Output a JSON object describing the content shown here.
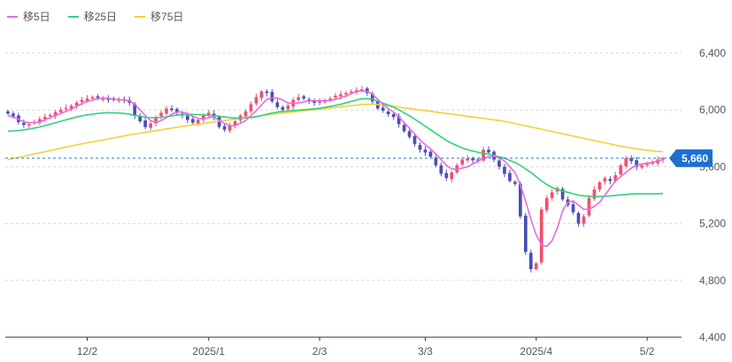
{
  "colors": {
    "ma5": "#e56be3",
    "ma25": "#2fd37a",
    "ma75": "#f2d03a",
    "up": "#f0506e",
    "down": "#4a4fb5",
    "last_line": "#2a7cc7",
    "badge": "#1e6fd0",
    "grid": "#d9d9d9",
    "axis": "#333333"
  },
  "chart_data": {
    "type": "line",
    "legend": [
      {
        "key": "ma5",
        "label": "移5日"
      },
      {
        "key": "ma25",
        "label": "移25日"
      },
      {
        "key": "ma75",
        "label": "移75日"
      }
    ],
    "legend_position": "top-left",
    "ylim": [
      4400,
      6720
    ],
    "y_ticks": [
      {
        "value": 4400,
        "label": "4,400"
      },
      {
        "value": 4800,
        "label": "4,800"
      },
      {
        "value": 5200,
        "label": "5,200"
      },
      {
        "value": 5600,
        "label": "5,600"
      },
      {
        "value": 6000,
        "label": "6,000"
      },
      {
        "value": 6400,
        "label": "6,400"
      }
    ],
    "x_ticks": [
      {
        "index": 15,
        "label": "12/2"
      },
      {
        "index": 38,
        "label": "2025/1"
      },
      {
        "index": 59,
        "label": "2/3"
      },
      {
        "index": 79,
        "label": "3/3"
      },
      {
        "index": 100,
        "label": "2025/4"
      },
      {
        "index": 121,
        "label": "5/2"
      }
    ],
    "grid": "horizontal-dashed",
    "last_price": {
      "value": 5660,
      "label": "5,660"
    },
    "close": [
      5975,
      5955,
      5915,
      5895,
      5900,
      5915,
      5935,
      5950,
      5965,
      5985,
      6000,
      6015,
      6030,
      6050,
      6070,
      6080,
      6090,
      6085,
      6080,
      6075,
      6070,
      6075,
      6065,
      6050,
      5960,
      5920,
      5880,
      5905,
      5950,
      5980,
      6010,
      6000,
      5980,
      5960,
      5930,
      5910,
      5930,
      5960,
      5980,
      5950,
      5880,
      5860,
      5890,
      5920,
      5960,
      5990,
      6040,
      6090,
      6130,
      6120,
      6060,
      6020,
      6000,
      6030,
      6070,
      6090,
      6080,
      6060,
      6050,
      6060,
      6070,
      6080,
      6100,
      6110,
      6120,
      6130,
      6140,
      6145,
      6120,
      6060,
      6010,
      5995,
      5970,
      5950,
      5900,
      5850,
      5810,
      5760,
      5720,
      5700,
      5670,
      5610,
      5550,
      5520,
      5560,
      5610,
      5650,
      5660,
      5645,
      5650,
      5720,
      5700,
      5650,
      5600,
      5550,
      5500,
      5480,
      5250,
      5000,
      4880,
      4920,
      5300,
      5380,
      5420,
      5450,
      5370,
      5330,
      5280,
      5200,
      5250,
      5380,
      5440,
      5490,
      5520,
      5500,
      5540,
      5610,
      5660,
      5640,
      5600,
      5610,
      5620,
      5630,
      5650,
      5660
    ],
    "ma5": [
      5960,
      5950,
      5935,
      5915,
      5910,
      5910,
      5915,
      5930,
      5945,
      5960,
      5975,
      5990,
      6005,
      6025,
      6045,
      6060,
      6070,
      6080,
      6083,
      6082,
      6076,
      6073,
      6070,
      6065,
      6040,
      6000,
      5960,
      5925,
      5910,
      5925,
      5945,
      5970,
      5985,
      5985,
      5975,
      5955,
      5940,
      5935,
      5945,
      5950,
      5925,
      5905,
      5890,
      5890,
      5905,
      5925,
      5960,
      5995,
      6035,
      6075,
      6085,
      6085,
      6070,
      6050,
      6045,
      6050,
      6055,
      6065,
      6065,
      6065,
      6065,
      6065,
      6075,
      6085,
      6100,
      6115,
      6130,
      6135,
      6130,
      6110,
      6075,
      6040,
      6010,
      5985,
      5950,
      5910,
      5870,
      5830,
      5790,
      5755,
      5725,
      5690,
      5650,
      5610,
      5585,
      5580,
      5590,
      5600,
      5620,
      5640,
      5660,
      5670,
      5675,
      5665,
      5640,
      5600,
      5560,
      5470,
      5360,
      5230,
      5120,
      5050,
      5040,
      5080,
      5170,
      5290,
      5350,
      5360,
      5330,
      5300,
      5300,
      5320,
      5350,
      5400,
      5450,
      5500,
      5530,
      5560,
      5590,
      5610,
      5620,
      5625,
      5630,
      5640,
      5650
    ],
    "ma25": [
      5850,
      5852,
      5855,
      5860,
      5865,
      5872,
      5880,
      5890,
      5900,
      5910,
      5920,
      5930,
      5940,
      5950,
      5958,
      5965,
      5970,
      5975,
      5978,
      5980,
      5980,
      5978,
      5975,
      5970,
      5962,
      5955,
      5948,
      5945,
      5945,
      5948,
      5952,
      5958,
      5963,
      5966,
      5968,
      5968,
      5967,
      5965,
      5962,
      5960,
      5955,
      5950,
      5946,
      5943,
      5942,
      5943,
      5946,
      5952,
      5960,
      5970,
      5978,
      5985,
      5990,
      5993,
      5996,
      5999,
      6002,
      6005,
      6008,
      6012,
      6018,
      6025,
      6032,
      6040,
      6050,
      6060,
      6070,
      6078,
      6080,
      6075,
      6062,
      6048,
      6035,
      6020,
      6000,
      5980,
      5958,
      5935,
      5910,
      5885,
      5860,
      5835,
      5810,
      5785,
      5765,
      5748,
      5733,
      5720,
      5710,
      5702,
      5695,
      5688,
      5680,
      5670,
      5660,
      5645,
      5630,
      5610,
      5585,
      5560,
      5530,
      5500,
      5475,
      5455,
      5440,
      5430,
      5420,
      5410,
      5400,
      5395,
      5392,
      5390,
      5390,
      5392,
      5395,
      5398,
      5402,
      5405,
      5408,
      5410,
      5410,
      5410,
      5410,
      5410,
      5412
    ],
    "ma75": [
      5650,
      5658,
      5666,
      5674,
      5682,
      5690,
      5698,
      5706,
      5714,
      5722,
      5730,
      5738,
      5746,
      5754,
      5761,
      5768,
      5775,
      5782,
      5789,
      5796,
      5803,
      5810,
      5817,
      5824,
      5830,
      5836,
      5842,
      5848,
      5854,
      5860,
      5866,
      5872,
      5878,
      5884,
      5890,
      5895,
      5900,
      5905,
      5910,
      5915,
      5920,
      5925,
      5930,
      5935,
      5940,
      5945,
      5950,
      5955,
      5960,
      5965,
      5970,
      5974,
      5978,
      5982,
      5986,
      5990,
      5994,
      5998,
      6002,
      6006,
      6010,
      6014,
      6018,
      6022,
      6026,
      6030,
      6034,
      6038,
      6040,
      6040,
      6038,
      6035,
      6030,
      6025,
      6020,
      6015,
      6010,
      6005,
      6000,
      5995,
      5990,
      5985,
      5980,
      5975,
      5970,
      5965,
      5960,
      5955,
      5950,
      5945,
      5940,
      5935,
      5930,
      5925,
      5920,
      5912,
      5904,
      5896,
      5888,
      5880,
      5872,
      5864,
      5856,
      5848,
      5840,
      5832,
      5824,
      5816,
      5808,
      5800,
      5792,
      5784,
      5776,
      5768,
      5760,
      5752,
      5744,
      5738,
      5732,
      5726,
      5720,
      5716,
      5712,
      5708,
      5705
    ]
  }
}
